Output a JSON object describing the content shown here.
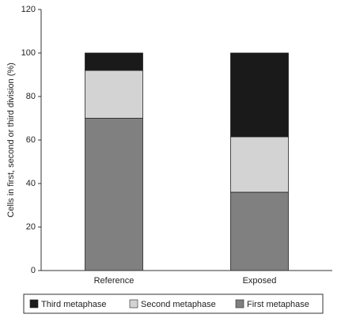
{
  "chart_data": {
    "type": "stacked_bar",
    "y_label": "Cells in first, second or third division (%)",
    "categories": [
      "Reference",
      "Exposed"
    ],
    "series": [
      {
        "name": "First metaphase",
        "color": "#808080",
        "values": [
          70,
          36
        ]
      },
      {
        "name": "Second metaphase",
        "color": "#d3d3d3",
        "values": [
          22,
          25.5
        ]
      },
      {
        "name": "Third metaphase",
        "color": "#1a1a1a",
        "values": [
          8,
          38.5
        ]
      }
    ],
    "ylim": [
      0,
      120
    ],
    "yticks": [
      0,
      20,
      40,
      60,
      80,
      100,
      120
    ]
  }
}
